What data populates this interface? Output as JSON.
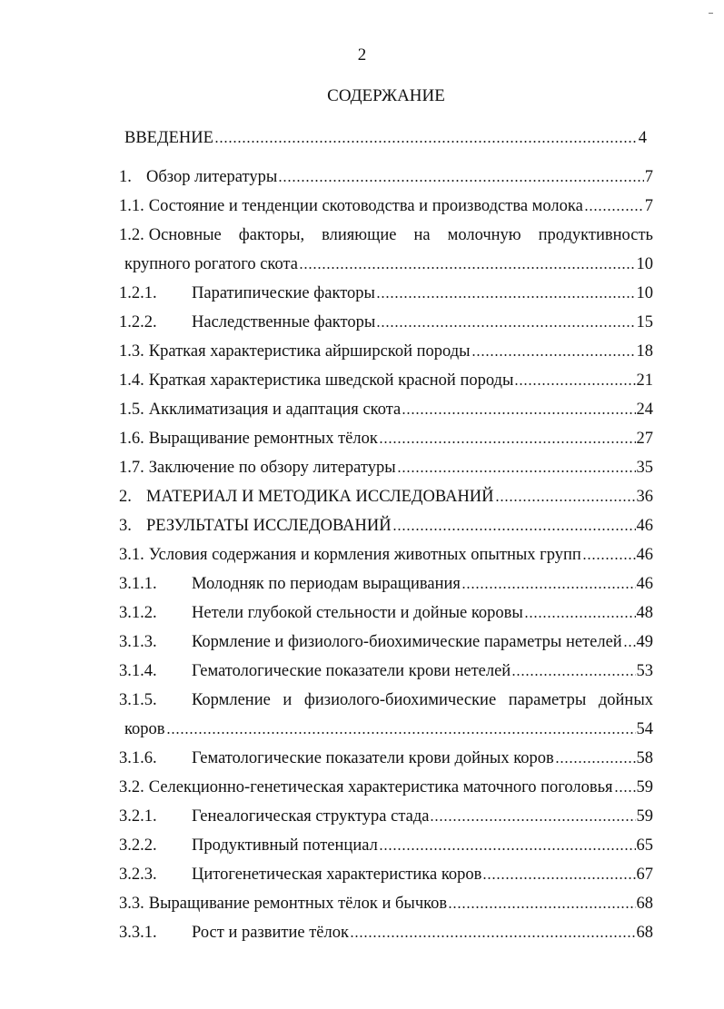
{
  "page_number": "2",
  "heading": "СОДЕРЖАНИЕ",
  "entries": [
    {
      "num": "",
      "title": "ВВЕДЕНИЕ",
      "page": "4",
      "level": "intro"
    },
    {
      "num": "1.",
      "title": "Обзор литературы",
      "page": "7",
      "level": "chapter"
    },
    {
      "num": "1.1.",
      "title": "Состояние и тенденции скотоводства и производства молока",
      "page": "7",
      "level": "section"
    },
    {
      "num": "1.2.",
      "title": "Основные факторы, влияющие на молочную продуктивность",
      "cont": "крупного рогатого скота",
      "page": "10",
      "level": "section"
    },
    {
      "num": "1.2.1.",
      "title": "Паратипические факторы",
      "page": "10",
      "level": "sub"
    },
    {
      "num": "1.2.2.",
      "title": "Наследственные факторы",
      "page": "15",
      "level": "sub"
    },
    {
      "num": "1.3.",
      "title": "Краткая характеристика айрширской породы",
      "page": "18",
      "level": "section"
    },
    {
      "num": "1.4.",
      "title": "Краткая характеристика шведской красной породы",
      "page": "21",
      "level": "section"
    },
    {
      "num": "1.5.",
      "title": "Акклиматизация и адаптация скота",
      "page": "24",
      "level": "section"
    },
    {
      "num": "1.6.",
      "title": "Выращивание ремонтных тёлок",
      "page": "27",
      "level": "section"
    },
    {
      "num": "1.7.",
      "title": "Заключение по обзору литературы",
      "page": "35",
      "level": "section"
    },
    {
      "num": "2.",
      "title": "МАТЕРИАЛ И МЕТОДИКА ИССЛЕДОВАНИЙ",
      "page": "36",
      "level": "chapter"
    },
    {
      "num": "3.",
      "title": "РЕЗУЛЬТАТЫ ИССЛЕДОВАНИЙ",
      "page": "46",
      "level": "chapter"
    },
    {
      "num": "3.1.",
      "title": "Условия содержания и кормления животных опытных групп",
      "page": "46",
      "level": "section"
    },
    {
      "num": "3.1.1.",
      "title": "Молодняк по периодам выращивания",
      "page": "46",
      "level": "sub"
    },
    {
      "num": "3.1.2.",
      "title": "Нетели глубокой стельности и дойные коровы",
      "page": "48",
      "level": "sub"
    },
    {
      "num": "3.1.3.",
      "title": "Кормление и физиолого-биохимические параметры нетелей",
      "page": "49",
      "level": "sub"
    },
    {
      "num": "3.1.4.",
      "title": "Гематологические показатели крови нетелей",
      "page": "53",
      "level": "sub"
    },
    {
      "num": "3.1.5.",
      "title": "Кормление и физиолого-биохимические параметры дойных",
      "cont": "коров",
      "page": "54",
      "level": "sub"
    },
    {
      "num": "3.1.6.",
      "title": "Гематологические показатели крови дойных коров",
      "page": "58",
      "level": "sub"
    },
    {
      "num": "3.2.",
      "title": "Селекционно-генетическая характеристика маточного поголовья",
      "page": "59",
      "level": "section"
    },
    {
      "num": "3.2.1.",
      "title": "Генеалогическая структура стада",
      "page": "59",
      "level": "sub"
    },
    {
      "num": "3.2.2.",
      "title": "Продуктивный потенциал",
      "page": "65",
      "level": "sub"
    },
    {
      "num": "3.2.3.",
      "title": "Цитогенетическая характеристика коров",
      "page": "67",
      "level": "sub"
    },
    {
      "num": "3.3.",
      "title": "Выращивание ремонтных тёлок и бычков",
      "page": "68",
      "level": "section"
    },
    {
      "num": "3.3.1.",
      "title": "Рост и развитие тёлок",
      "page": "68",
      "level": "sub"
    }
  ]
}
